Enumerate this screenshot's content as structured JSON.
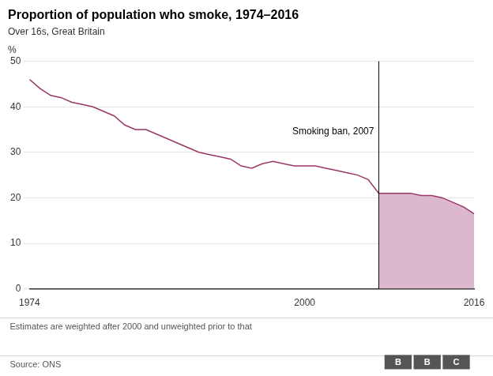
{
  "chart_data": {
    "type": "line",
    "title": "Proportion of population who smoke, 1974–2016",
    "subtitle": "Over 16s, Great Britain",
    "ylabel": "%",
    "footer_note": "Estimates are weighted after 2000 and unweighted prior to that",
    "source": "Source: ONS",
    "logo": "BBC",
    "x": [
      1974,
      1975,
      1976,
      1977,
      1978,
      1979,
      1980,
      1981,
      1982,
      1983,
      1984,
      1985,
      1986,
      1987,
      1988,
      1989,
      1990,
      1991,
      1992,
      1993,
      1994,
      1995,
      1996,
      1997,
      1998,
      1999,
      2000,
      2001,
      2002,
      2003,
      2004,
      2005,
      2006,
      2007,
      2008,
      2009,
      2010,
      2011,
      2012,
      2013,
      2014,
      2015,
      2016
    ],
    "values": [
      46,
      44,
      42.5,
      42,
      41,
      40.5,
      40,
      39,
      38,
      36,
      35,
      35,
      34,
      33,
      32,
      31,
      30,
      29.5,
      29,
      28.5,
      27,
      26.5,
      27.5,
      28,
      27.5,
      27,
      27,
      27,
      26.5,
      26,
      25.5,
      25,
      24,
      21,
      21,
      21,
      21,
      20.5,
      20.5,
      20,
      19,
      18,
      16.5
    ],
    "color": "#9b3668",
    "annotations": [
      {
        "x": 2007,
        "text": "Smoking ban, 2007",
        "shade_color": "#dbb8cb"
      }
    ],
    "xlim": [
      1974,
      2016
    ],
    "xticks": [
      1974,
      2000,
      2016
    ],
    "ylim": [
      0,
      50
    ],
    "yticks": [
      0,
      10,
      20,
      30,
      40,
      50
    ],
    "grid": "y"
  }
}
